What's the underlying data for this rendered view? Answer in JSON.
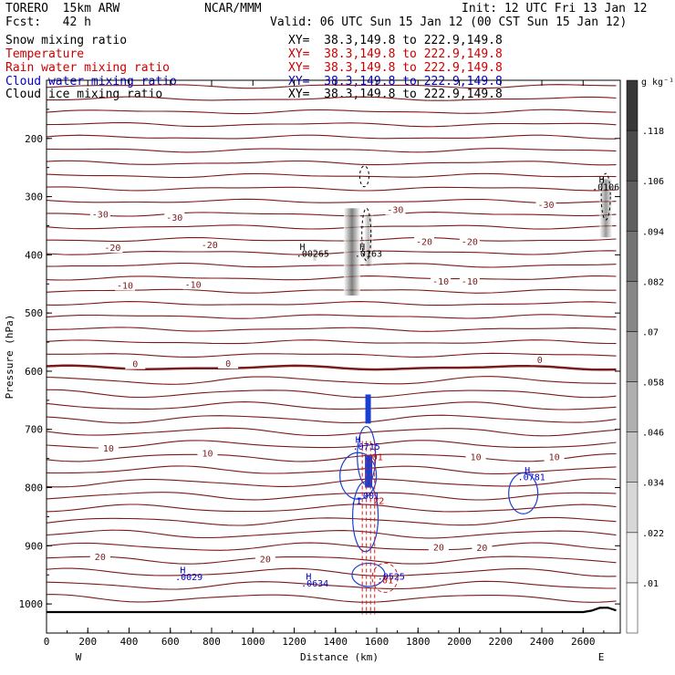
{
  "header": {
    "model": "TORERO  15km ARW",
    "center": "NCAR/MMM",
    "init": "Init: 12 UTC Fri 13 Jan 12",
    "fcst": "Fcst:   42 h",
    "valid": "Valid: 06 UTC Sun 15 Jan 12 (00 CST Sun 15 Jan 12)"
  },
  "fields": [
    {
      "name": "Snow mixing ratio",
      "xy": "XY=  38.3,149.8 to 222.9,149.8",
      "color": "#000000"
    },
    {
      "name": "Temperature",
      "xy": "XY=  38.3,149.8 to 222.9,149.8",
      "color": "#cc0000"
    },
    {
      "name": "Rain water mixing ratio",
      "xy": "XY=  38.3,149.8 to 222.9,149.8",
      "color": "#cc0000"
    },
    {
      "name": "Cloud water mixing ratio",
      "xy": "XY=  38.3,149.8 to 222.9,149.8",
      "color": "#0000cc"
    },
    {
      "name": "Cloud ice mixing ratio",
      "xy": "XY=  38.3,149.8 to 222.9,149.8",
      "color": "#000000"
    }
  ],
  "chart_data": {
    "type": "contour",
    "xlabel": "Distance (km)",
    "ylabel": "Pressure (hPa)",
    "xlim": [
      0,
      2780
    ],
    "ylim": [
      1050,
      100
    ],
    "xticks": [
      "0",
      "200",
      "400",
      "600",
      "800",
      "1000",
      "1200",
      "1400",
      "1600",
      "1800",
      "2000",
      "2200",
      "2400",
      "2600"
    ],
    "yticks": [
      "200",
      "300",
      "400",
      "500",
      "600",
      "700",
      "800",
      "900",
      "1000"
    ],
    "west_label": "W",
    "east_label": "E",
    "colorbar": {
      "unit": "g kg⁻¹",
      "labels": [
        ".01",
        ".022",
        ".034",
        ".046",
        ".058",
        ".07",
        ".082",
        ".094",
        ".106",
        ".118"
      ]
    },
    "temperature_labels": [
      {
        "text": "-30",
        "x": 260,
        "p": 330
      },
      {
        "text": "-30",
        "x": 620,
        "p": 335
      },
      {
        "text": "-30",
        "x": 1690,
        "p": 322
      },
      {
        "text": "-30",
        "x": 2420,
        "p": 313
      },
      {
        "text": "-20",
        "x": 320,
        "p": 387
      },
      {
        "text": "-20",
        "x": 790,
        "p": 382
      },
      {
        "text": "-20",
        "x": 1830,
        "p": 377
      },
      {
        "text": "-20",
        "x": 2050,
        "p": 377
      },
      {
        "text": "-10",
        "x": 380,
        "p": 452
      },
      {
        "text": "-10",
        "x": 710,
        "p": 450
      },
      {
        "text": "-10",
        "x": 1910,
        "p": 445
      },
      {
        "text": "-10",
        "x": 2050,
        "p": 445
      },
      {
        "text": "0",
        "x": 430,
        "p": 587
      },
      {
        "text": "0",
        "x": 880,
        "p": 586
      },
      {
        "text": "0",
        "x": 2390,
        "p": 580
      },
      {
        "text": "10",
        "x": 300,
        "p": 732
      },
      {
        "text": "10",
        "x": 780,
        "p": 740
      },
      {
        "text": "10",
        "x": 2080,
        "p": 747
      },
      {
        "text": "10",
        "x": 2460,
        "p": 747
      },
      {
        "text": "20",
        "x": 260,
        "p": 918
      },
      {
        "text": "20",
        "x": 1060,
        "p": 922
      },
      {
        "text": "20",
        "x": 1900,
        "p": 902
      },
      {
        "text": "20",
        "x": 2110,
        "p": 903
      }
    ],
    "extrema_labels": [
      {
        "text": "H",
        "x": 1240,
        "p": 385,
        "color": "#000000"
      },
      {
        "text": ".00265",
        "x": 1290,
        "p": 397,
        "color": "#000000"
      },
      {
        "text": "H",
        "x": 1530,
        "p": 385,
        "color": "#000000"
      },
      {
        "text": ".0163",
        "x": 1560,
        "p": 397,
        "color": "#000000"
      },
      {
        "text": "H",
        "x": 2690,
        "p": 270,
        "color": "#000000"
      },
      {
        "text": ".0106",
        "x": 2710,
        "p": 283,
        "color": "#000000"
      },
      {
        "text": "H",
        "x": 1510,
        "p": 717,
        "color": "#0000cc"
      },
      {
        "text": ".0715",
        "x": 1550,
        "p": 729,
        "color": "#0000cc"
      },
      {
        "text": ".01",
        "x": 1590,
        "p": 747,
        "color": "#cc0000"
      },
      {
        "text": ".001",
        "x": 1560,
        "p": 813,
        "color": "#0000cc"
      },
      {
        "text": ".1",
        "x": 1500,
        "p": 822,
        "color": "#0000cc"
      },
      {
        "text": "22",
        "x": 1610,
        "p": 822,
        "color": "#cc0000"
      },
      {
        "text": "H",
        "x": 2330,
        "p": 769,
        "color": "#0000cc"
      },
      {
        "text": ".0781",
        "x": 2350,
        "p": 781,
        "color": "#0000cc"
      },
      {
        "text": "H",
        "x": 660,
        "p": 941,
        "color": "#0000cc"
      },
      {
        "text": ".0029",
        "x": 690,
        "p": 953,
        "color": "#0000cc"
      },
      {
        "text": "H",
        "x": 1270,
        "p": 952,
        "color": "#0000cc"
      },
      {
        "text": ".0634",
        "x": 1300,
        "p": 964,
        "color": "#0000cc"
      },
      {
        "text": ".0525",
        "x": 1670,
        "p": 952,
        "color": "#0000cc"
      },
      {
        "text": ".01",
        "x": 1640,
        "p": 958,
        "color": "#cc0000"
      }
    ]
  }
}
